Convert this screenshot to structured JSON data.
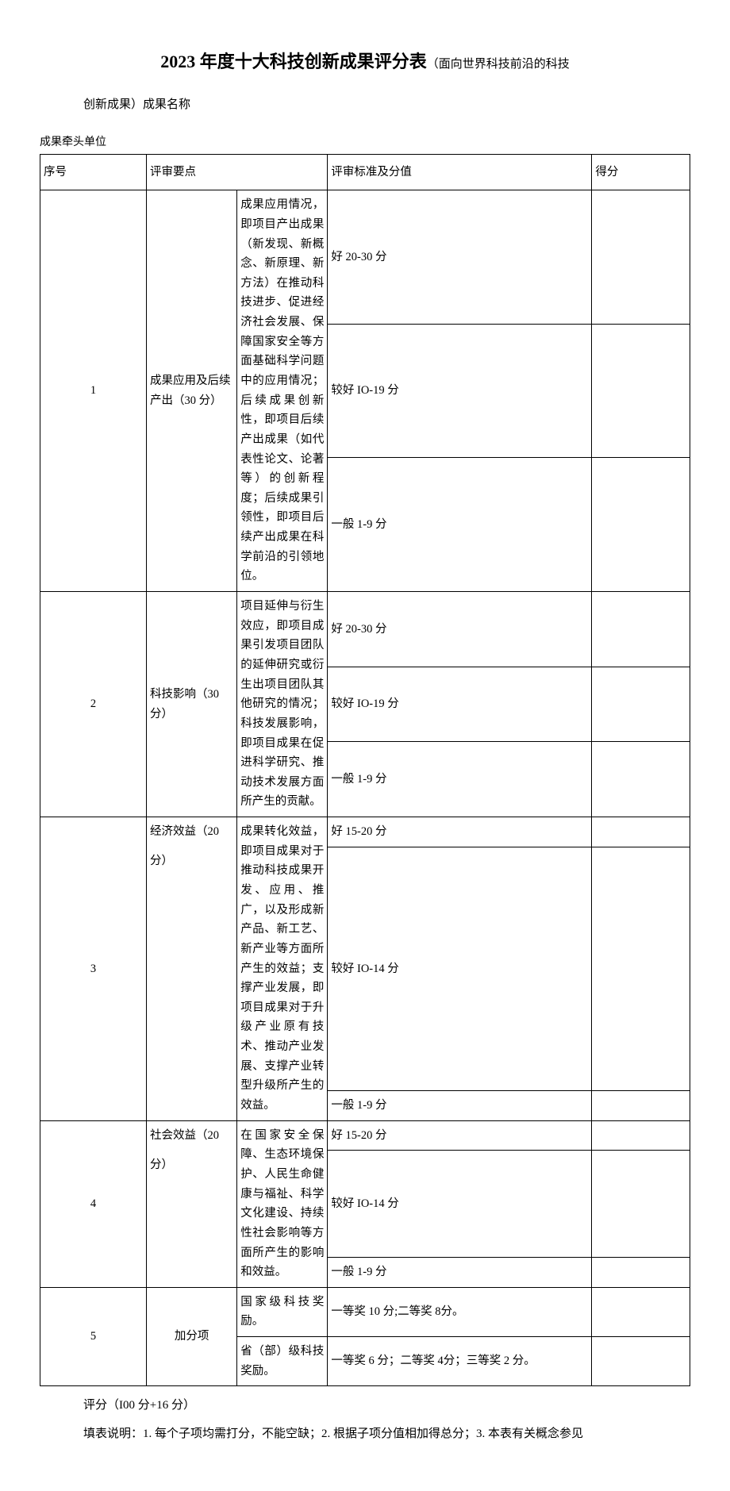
{
  "title": {
    "main_big": "2023 年度十大科技创新成果评分表",
    "main_small": "（面向世界科技前沿的科技",
    "subtitle": "创新成果）成果名称"
  },
  "lead_unit_label": "成果牵头单位",
  "headers": {
    "index": "序号",
    "category": "评审要点",
    "standard": "评审标准及分值",
    "score": "得分"
  },
  "rows": [
    {
      "index": "1",
      "category": "成果应用及后续产出（30 分）",
      "desc": "成果应用情况，即项目产出成果（新发现、新概念、新原理、新方法）在推动科技进步、促进经济社会发展、保障国家安全等方面基础科学问题中的应用情况；后续成果创新性，即项目后续产出成果（如代表性论文、论著等）的创新程度；后续成果引领性，即项目后续产出成果在科学前沿的引领地位。",
      "standards": [
        "好 20-30 分",
        "较好 IO-19 分",
        "一般 1-9 分"
      ]
    },
    {
      "index": "2",
      "category": "科技影响（30分）",
      "desc": "项目延伸与衍生效应，即项目成果引发项目团队的延伸研究或衍生出项目团队其他研究的情况；科技发展影响，即项目成果在促进科学研究、推动技术发展方面所产生的贡献。",
      "standards": [
        "好 20-30 分",
        "较好 IO-19 分",
        "一般 1-9 分"
      ]
    },
    {
      "index": "3",
      "category_line1": "经济效益（20",
      "category_line2": "分）",
      "desc": "成果转化效益，即项目成果对于推动科技成果开发、应用、推广，以及形成新产品、新工艺、新产业等方面所产生的效益；支撑产业发展，即项目成果对于升级产业原有技术、推动产业发展、支撑产业转型升级所产生的效益。",
      "standards": [
        "好 15-20 分",
        "较好 IO-14 分",
        "一般 1-9 分"
      ]
    },
    {
      "index": "4",
      "category_line1": "社会效益（20",
      "category_line2": "分）",
      "desc": "在国家安全保障、生态环境保护、人民生命健康与福祉、科学文化建设、持续性社会影响等方面所产生的影响和效益。",
      "standards": [
        "好 15-20 分",
        "较好 IO-14 分",
        "一般 1-9 分"
      ]
    },
    {
      "index": "5",
      "category": "加分项",
      "sub_rows": [
        {
          "desc": "国家级科技奖励。",
          "standard": "一等奖 10 分;二等奖 8分。"
        },
        {
          "desc": "省（部）级科技奖励。",
          "standard": "一等奖 6 分；二等奖 4分；三等奖 2 分。"
        }
      ]
    }
  ],
  "footer": "评分（I00 分+16 分）",
  "instructions": "填表说明：1. 每个子项均需打分，不能空缺；2. 根据子项分值相加得总分；3. 本表有关概念参见"
}
